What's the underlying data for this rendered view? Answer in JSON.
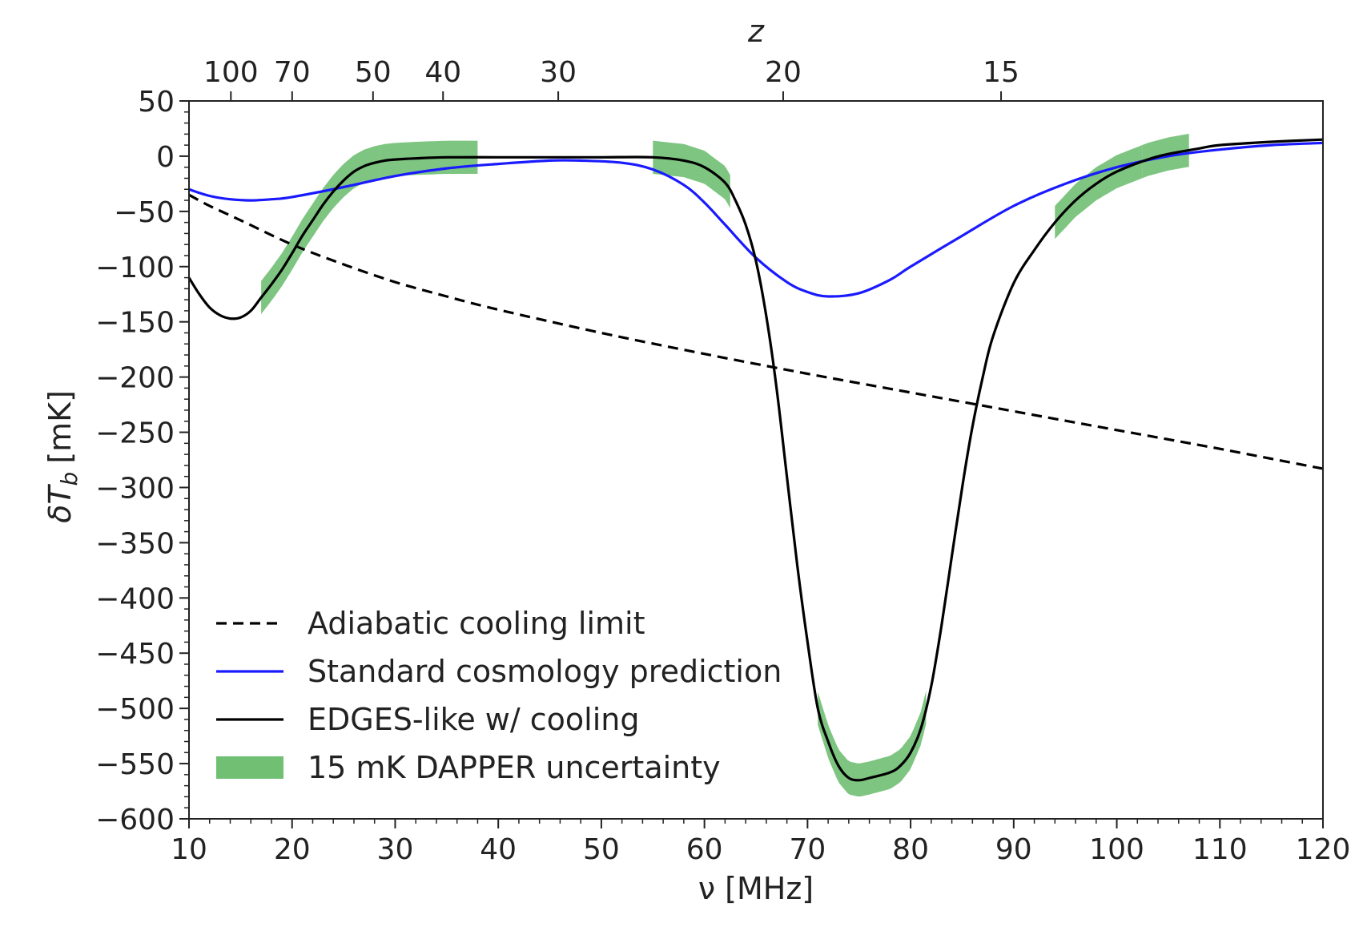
{
  "chart_data": {
    "type": "line",
    "xlabel": "ν [MHz]",
    "ylabel_base": "δT",
    "ylabel_sub": "b",
    "ylabel_unit": "[mK]",
    "top_axis_label": "z",
    "xlim": [
      10,
      120
    ],
    "ylim": [
      -600,
      50
    ],
    "x_ticks": [
      10,
      20,
      30,
      40,
      50,
      60,
      70,
      80,
      90,
      100,
      110,
      120
    ],
    "y_ticks": [
      50,
      0,
      -50,
      -100,
      -150,
      -200,
      -250,
      -300,
      -350,
      -400,
      -450,
      -500,
      -550,
      -600
    ],
    "top_ticks": [
      {
        "z": 100,
        "label": "100"
      },
      {
        "z": 70,
        "label": "70"
      },
      {
        "z": 50,
        "label": "50"
      },
      {
        "z": 40,
        "label": "40"
      },
      {
        "z": 30,
        "label": "30"
      },
      {
        "z": 20,
        "label": "20"
      },
      {
        "z": 15,
        "label": "15"
      }
    ],
    "series": [
      {
        "name": "Adiabatic cooling limit",
        "color": "#000000",
        "style": "dashed",
        "x": [
          10,
          12,
          15,
          20,
          25,
          30,
          35,
          40,
          50,
          60,
          70,
          80,
          90,
          100,
          110,
          120
        ],
        "y": [
          -35,
          -45,
          -58,
          -80,
          -98,
          -114,
          -127,
          -139,
          -160,
          -179,
          -197,
          -214,
          -231,
          -248,
          -265,
          -283
        ]
      },
      {
        "name": "Standard cosmology prediction",
        "color": "#1a1aff",
        "style": "solid",
        "x": [
          10,
          12,
          14,
          16,
          18,
          20,
          25,
          30,
          35,
          40,
          45,
          48,
          52,
          55,
          58,
          60,
          62,
          65,
          68,
          70,
          72,
          75,
          78,
          80,
          85,
          90,
          95,
          100,
          105,
          110,
          115,
          120
        ],
        "y": [
          -30,
          -36,
          -39,
          -40,
          -39,
          -37,
          -28,
          -18,
          -11,
          -7,
          -4,
          -4,
          -6,
          -12,
          -26,
          -42,
          -62,
          -92,
          -114,
          -123,
          -127,
          -124,
          -112,
          -100,
          -72,
          -45,
          -25,
          -10,
          0,
          6,
          10,
          12
        ]
      },
      {
        "name": "EDGES-like w/ cooling",
        "color": "#000000",
        "style": "solid",
        "x": [
          10,
          11,
          12,
          13,
          14,
          15,
          16,
          17,
          18,
          19,
          20,
          21,
          22,
          23,
          24,
          25,
          26,
          27,
          28,
          29,
          30,
          32,
          35,
          40,
          45,
          50,
          55,
          58,
          60,
          62,
          63,
          64,
          65,
          66,
          67,
          68,
          69,
          70,
          71,
          72,
          73,
          74,
          75,
          76,
          78,
          79,
          80,
          81,
          82,
          83,
          84,
          85,
          86,
          87,
          88,
          90,
          92,
          94,
          96,
          98,
          100,
          103,
          105,
          108,
          110,
          115,
          120
        ],
        "y": [
          -110,
          -125,
          -137,
          -144,
          -147,
          -146,
          -140,
          -128,
          -116,
          -103,
          -88,
          -72,
          -58,
          -44,
          -32,
          -22,
          -14,
          -9,
          -6,
          -4,
          -3,
          -2,
          -1,
          -1,
          -1,
          -1,
          -1,
          -4,
          -10,
          -24,
          -40,
          -62,
          -95,
          -145,
          -210,
          -290,
          -370,
          -440,
          -500,
          -530,
          -552,
          -563,
          -565,
          -563,
          -558,
          -552,
          -540,
          -518,
          -480,
          -425,
          -362,
          -300,
          -245,
          -200,
          -163,
          -115,
          -85,
          -60,
          -40,
          -25,
          -14,
          -3,
          2,
          7,
          10,
          13,
          15
        ]
      }
    ],
    "uncertainty": {
      "name": "15 mK DAPPER uncertainty",
      "color": "#4caf50",
      "half_width_mK": 15,
      "bands": [
        {
          "x_start": 17,
          "x_end": 28.5
        },
        {
          "x_start": 28.5,
          "x_end": 38
        },
        {
          "x_start": 55,
          "x_end": 62.5
        },
        {
          "x_start": 71,
          "x_end": 81.5
        },
        {
          "x_start": 94,
          "x_end": 102.5
        },
        {
          "x_start": 102.5,
          "x_end": 107
        }
      ]
    },
    "legend": {
      "position": "lower-left",
      "entries": [
        {
          "label": "Adiabatic cooling limit",
          "kind": "dashed",
          "color": "#000000"
        },
        {
          "label": "Standard cosmology prediction",
          "kind": "line",
          "color": "#1a1aff"
        },
        {
          "label": "EDGES-like w/ cooling",
          "kind": "line",
          "color": "#000000"
        },
        {
          "label": "15 mK DAPPER uncertainty",
          "kind": "patch",
          "color": "#4caf50"
        }
      ]
    },
    "grid": false
  }
}
